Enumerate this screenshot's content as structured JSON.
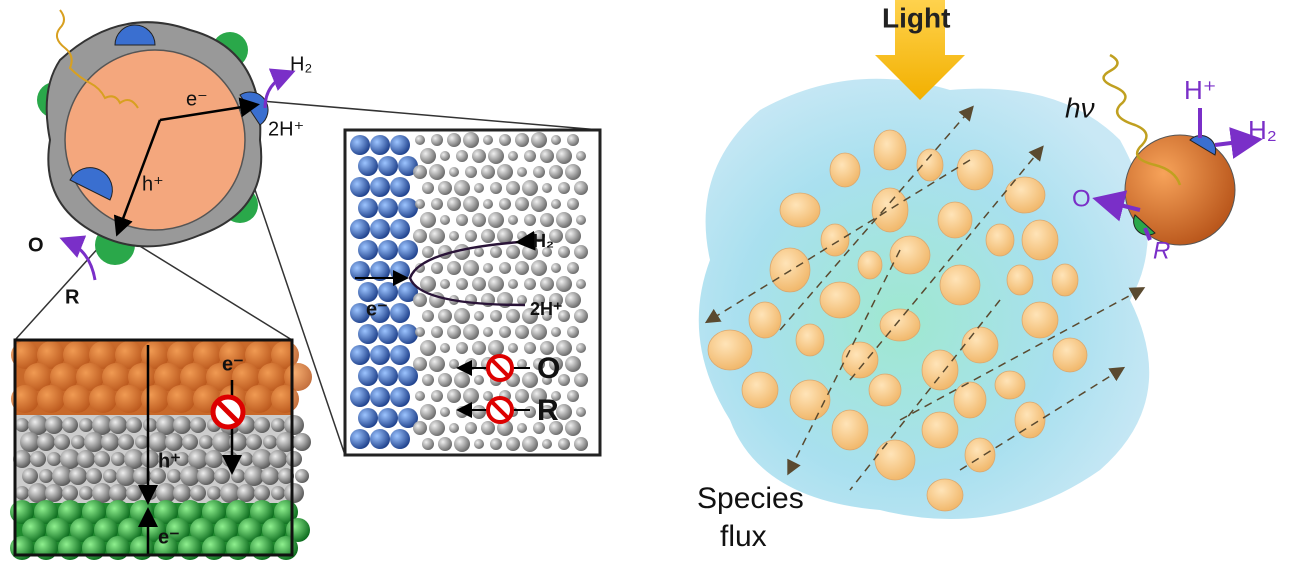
{
  "left_particle": {
    "h2": "H₂",
    "electron": "e⁻",
    "protons": "2H⁺",
    "hole": "h⁺",
    "oxidized": "O",
    "reduced": "R"
  },
  "bottom_inset": {
    "electron_top": "e⁻",
    "hole": "h⁺",
    "electron_bottom": "e⁻"
  },
  "side_inset": {
    "h2": "H₂",
    "electron": "e⁻",
    "protons": "2H⁺",
    "oxidized": "O",
    "reduced": "R"
  },
  "right_panel": {
    "light": "Light",
    "photon": "hν",
    "proton": "H⁺",
    "h2": "H₂",
    "oxidized": "O",
    "reduced": "R",
    "species_flux": [
      "Species",
      "flux"
    ]
  }
}
